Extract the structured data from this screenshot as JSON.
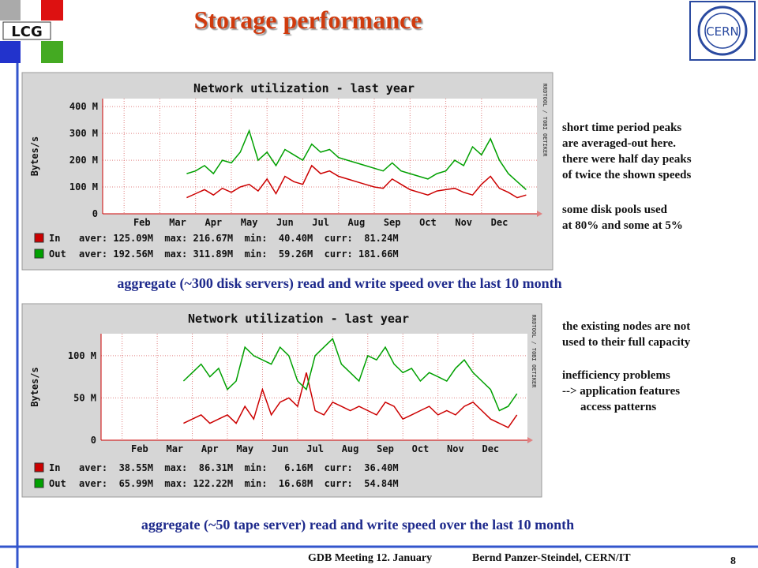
{
  "header": {
    "title": "Storage performance",
    "logo_left": "LCG",
    "logo_right": "CERN"
  },
  "chart_data": [
    {
      "type": "line",
      "title": "Network utilization - last year",
      "y_label": "Bytes/s",
      "credit": "RRDTOOL / TOBI OETIKER",
      "x": [
        2.75,
        3,
        3.25,
        3.5,
        3.75,
        4,
        4.25,
        4.5,
        4.75,
        5,
        5.25,
        5.5,
        5.75,
        6,
        6.25,
        6.5,
        6.75,
        7,
        7.25,
        7.5,
        7.75,
        8,
        8.25,
        8.5,
        8.75,
        9,
        9.25,
        9.5,
        9.75,
        10,
        10.25,
        10.5,
        10.75,
        11,
        11.25,
        11.5,
        11.75,
        12,
        12.25
      ],
      "xlim": [
        0.4,
        12.55
      ],
      "xticks": [
        {
          "value": 1,
          "label": "Feb"
        },
        {
          "value": 2,
          "label": "Mar"
        },
        {
          "value": 3,
          "label": "Apr"
        },
        {
          "value": 4,
          "label": "May"
        },
        {
          "value": 5,
          "label": "Jun"
        },
        {
          "value": 6,
          "label": "Jul"
        },
        {
          "value": 7,
          "label": "Aug"
        },
        {
          "value": 8,
          "label": "Sep"
        },
        {
          "value": 9,
          "label": "Oct"
        },
        {
          "value": 10,
          "label": "Nov"
        },
        {
          "value": 11,
          "label": "Dec"
        }
      ],
      "ylim": [
        0,
        430
      ],
      "yticks": [
        0,
        {
          "value": 100,
          "label": "100 M"
        },
        {
          "value": 200,
          "label": "200 M"
        },
        {
          "value": 300,
          "label": "300 M"
        },
        {
          "value": 400,
          "label": "400 M"
        }
      ],
      "grid": true,
      "series": [
        {
          "name": "In",
          "color": "#cc0000",
          "stats": "aver: 125.09M  max: 216.67M  min:  40.40M  curr:  81.24M",
          "values": [
            60,
            75,
            90,
            70,
            95,
            80,
            100,
            110,
            85,
            130,
            75,
            140,
            120,
            110,
            180,
            150,
            160,
            140,
            130,
            120,
            110,
            100,
            95,
            130,
            110,
            90,
            80,
            70,
            85,
            90,
            95,
            80,
            70,
            110,
            140,
            95,
            80,
            60,
            70
          ]
        },
        {
          "name": "Out",
          "color": "#00a000",
          "stats": "aver: 192.56M  max: 311.89M  min:  59.26M  curr: 181.66M",
          "values": [
            150,
            160,
            180,
            150,
            200,
            190,
            230,
            310,
            200,
            230,
            180,
            240,
            220,
            200,
            260,
            230,
            240,
            210,
            200,
            190,
            180,
            170,
            160,
            190,
            160,
            150,
            140,
            130,
            150,
            160,
            200,
            180,
            250,
            220,
            280,
            200,
            150,
            120,
            90
          ]
        }
      ]
    },
    {
      "type": "line",
      "title": "Network utilization - last year",
      "y_label": "Bytes/s",
      "credit": "RRDTOOL / TOBI OETIKER",
      "x": [
        2.75,
        3,
        3.25,
        3.5,
        3.75,
        4,
        4.25,
        4.5,
        4.75,
        5,
        5.25,
        5.5,
        5.75,
        6,
        6.25,
        6.5,
        6.75,
        7,
        7.25,
        7.5,
        7.75,
        8,
        8.25,
        8.5,
        8.75,
        9,
        9.25,
        9.5,
        9.75,
        10,
        10.25,
        10.5,
        10.75,
        11,
        11.25,
        11.5,
        11.75,
        12,
        12.25
      ],
      "xlim": [
        0.4,
        12.55
      ],
      "xticks": [
        {
          "value": 1,
          "label": "Feb"
        },
        {
          "value": 2,
          "label": "Mar"
        },
        {
          "value": 3,
          "label": "Apr"
        },
        {
          "value": 4,
          "label": "May"
        },
        {
          "value": 5,
          "label": "Jun"
        },
        {
          "value": 6,
          "label": "Jul"
        },
        {
          "value": 7,
          "label": "Aug"
        },
        {
          "value": 8,
          "label": "Sep"
        },
        {
          "value": 9,
          "label": "Oct"
        },
        {
          "value": 10,
          "label": "Nov"
        },
        {
          "value": 11,
          "label": "Dec"
        }
      ],
      "ylim": [
        0,
        126
      ],
      "yticks": [
        0,
        {
          "value": 50,
          "label": "50 M"
        },
        {
          "value": 100,
          "label": "100 M"
        }
      ],
      "grid": true,
      "series": [
        {
          "name": "In",
          "color": "#cc0000",
          "stats": "aver:  38.55M  max:  86.31M  min:   6.16M  curr:  36.40M",
          "values": [
            20,
            25,
            30,
            20,
            25,
            30,
            20,
            40,
            25,
            60,
            30,
            45,
            50,
            40,
            80,
            35,
            30,
            45,
            40,
            35,
            40,
            35,
            30,
            45,
            40,
            25,
            30,
            35,
            40,
            30,
            35,
            30,
            40,
            45,
            35,
            25,
            20,
            15,
            30
          ]
        },
        {
          "name": "Out",
          "color": "#00a000",
          "stats": "aver:  65.99M  max: 122.22M  min:  16.68M  curr:  54.84M",
          "values": [
            70,
            80,
            90,
            75,
            85,
            60,
            70,
            110,
            100,
            95,
            90,
            110,
            100,
            70,
            60,
            100,
            110,
            120,
            90,
            80,
            70,
            100,
            95,
            110,
            90,
            80,
            85,
            70,
            80,
            75,
            70,
            85,
            95,
            80,
            70,
            60,
            35,
            40,
            55
          ]
        }
      ]
    }
  ],
  "captions": [
    "aggregate (~300 disk servers) read and write speed over the last 10 month",
    "aggregate (~50 tape server) read and write speed over the last 10 month"
  ],
  "notes": [
    [
      "short time period peaks",
      "are averaged-out here.",
      "there were half day peaks",
      "of twice the shown speeds"
    ],
    [
      "some disk pools used",
      "at 80% and some at 5%"
    ],
    [
      "the existing nodes are not",
      "used to their full capacity"
    ],
    [
      "inefficiency problems",
      "--> application features",
      "access patterns"
    ]
  ],
  "footer": {
    "left": "GDB Meeting 12. January",
    "right": "Bernd Panzer-Steindel,  CERN/IT",
    "page": "8"
  }
}
